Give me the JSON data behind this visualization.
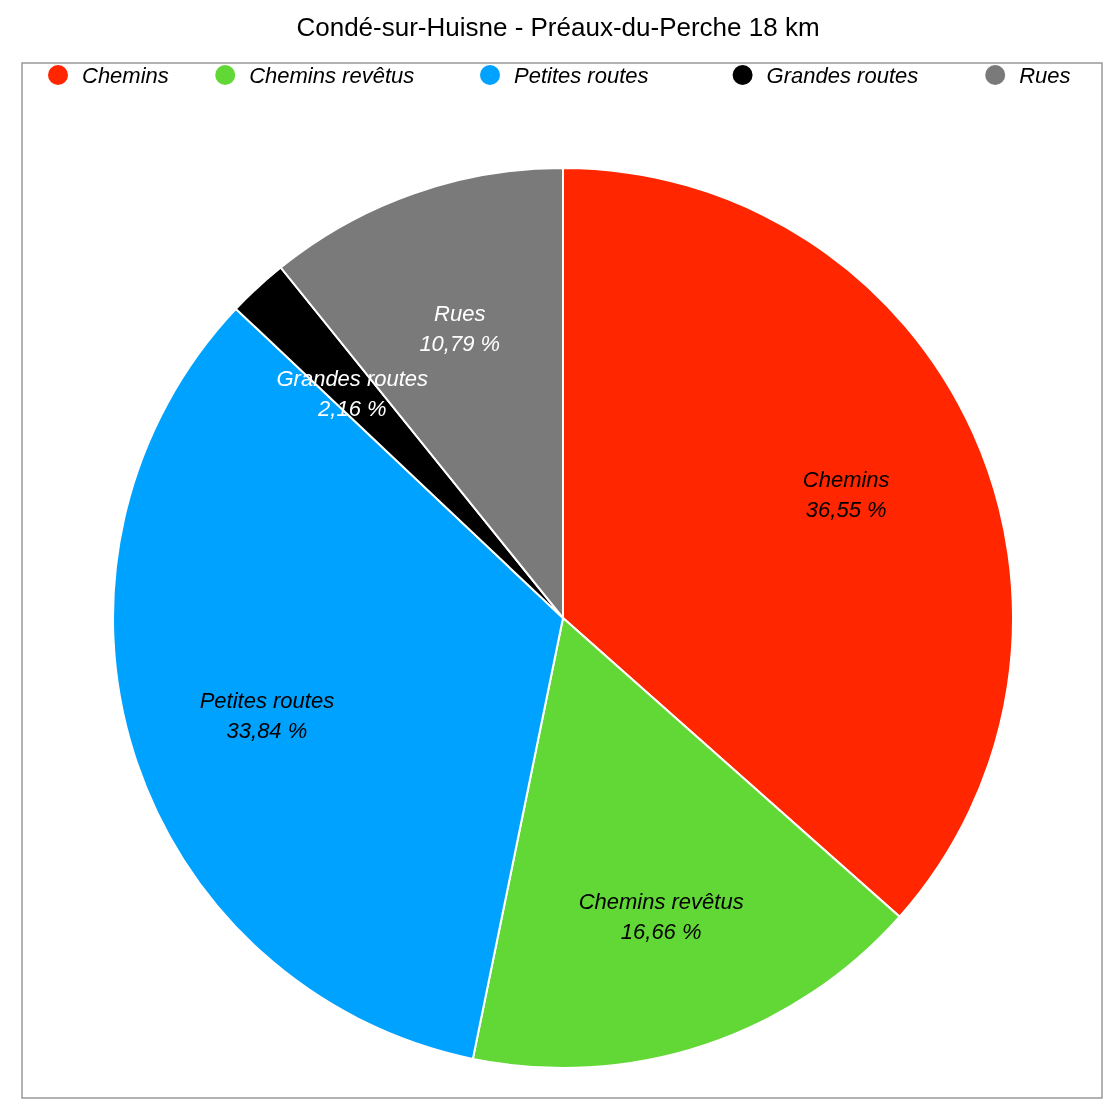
{
  "chart_data": {
    "type": "pie",
    "title": "Condé-sur-Huisne - Préaux-du-Perche 18 km",
    "categories": [
      "Chemins",
      "Chemins revêtus",
      "Petites routes",
      "Grandes routes",
      "Rues"
    ],
    "values": [
      36.55,
      16.66,
      33.84,
      2.16,
      10.79
    ],
    "colors": [
      "#ff2600",
      "#61d836",
      "#00a2ff",
      "#000000",
      "#7a7a7a"
    ],
    "value_labels": [
      "36,55 %",
      "16,66 %",
      "33,84 %",
      "2,16 %",
      "10,79 %"
    ],
    "legend": "top"
  }
}
